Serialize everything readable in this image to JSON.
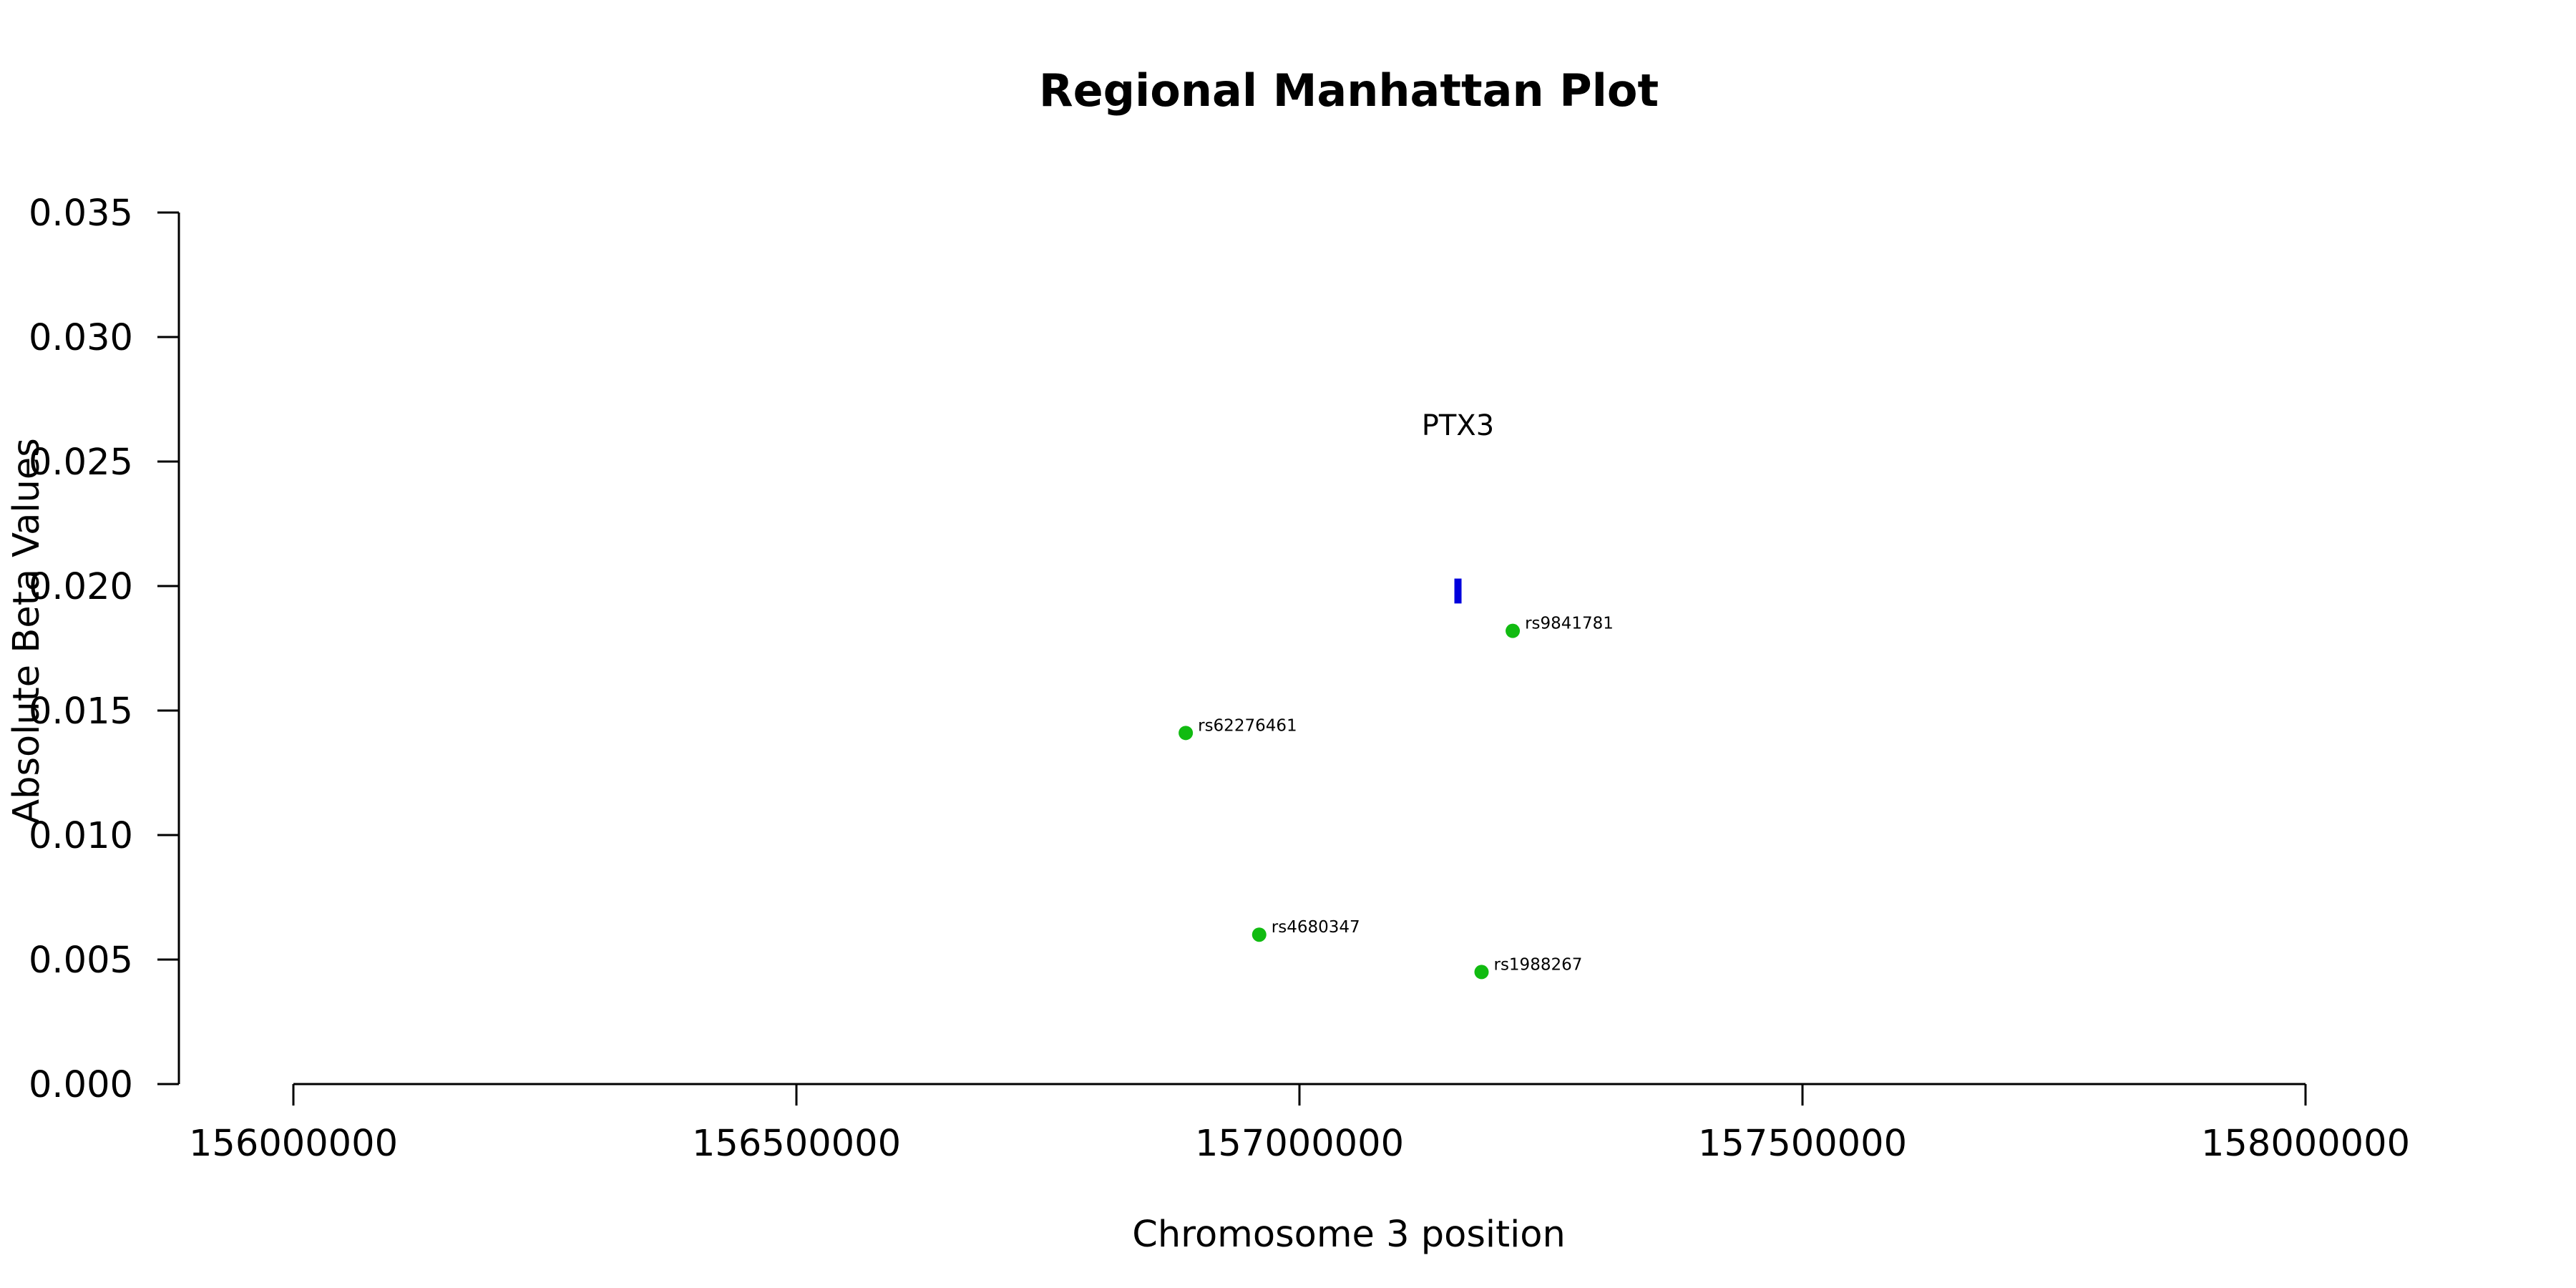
{
  "chart_data": {
    "type": "scatter",
    "title": "Regional Manhattan Plot",
    "xlabel": "Chromosome 3 position",
    "ylabel": "Absolute Beta Values",
    "xlim": [
      156000000,
      158000000
    ],
    "ylim": [
      0,
      0.035
    ],
    "x_ticks": [
      156000000,
      156500000,
      157000000,
      157500000,
      158000000
    ],
    "x_tick_labels": [
      "156000000",
      "156500000",
      "157000000",
      "157500000",
      "158000000"
    ],
    "y_ticks": [
      0,
      0.005,
      0.01,
      0.015,
      0.02,
      0.025,
      0.03,
      0.035
    ],
    "y_tick_labels": [
      "0.000",
      "0.005",
      "0.010",
      "0.015",
      "0.020",
      "0.025",
      "0.030",
      "0.035"
    ],
    "grid": false,
    "point_color": "#11bb11",
    "gene_color": "#0000dd",
    "points": [
      {
        "label": "rs62276461",
        "x": 156887000,
        "y": 0.0141
      },
      {
        "label": "rs9841781",
        "x": 157212000,
        "y": 0.0182
      },
      {
        "label": "rs4680347",
        "x": 156960000,
        "y": 0.006
      },
      {
        "label": "rs1988267",
        "x": 157181000,
        "y": 0.0045
      }
    ],
    "gene": {
      "name": "PTX3",
      "start": 157154000,
      "end": 157161000,
      "y_low": 0.0193,
      "y_high": 0.0203
    }
  }
}
